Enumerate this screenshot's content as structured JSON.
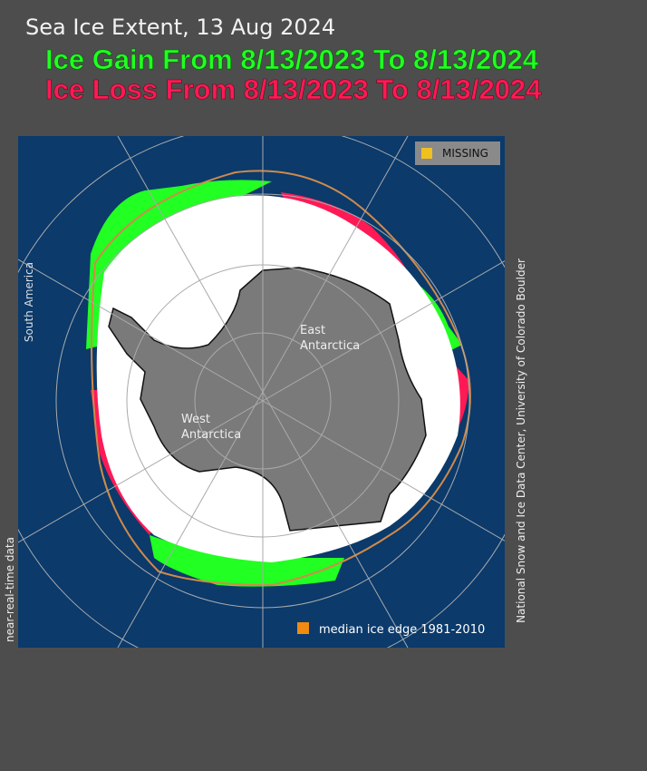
{
  "header": {
    "title": "Sea Ice Extent, 13 Aug 2024",
    "gain": "Ice Gain From 8/13/2023 To 8/13/2024",
    "loss": "Ice Loss From 8/13/2023 To 8/13/2024"
  },
  "map": {
    "labels": {
      "south_america": "South America",
      "east_antarctica": [
        "East",
        "Antarctica"
      ],
      "west_antarctica": [
        "West",
        "Antarctica"
      ]
    },
    "legend": {
      "missing": "MISSING",
      "median": "median ice edge 1981-2010"
    }
  },
  "credits": {
    "left": "near-real-time data",
    "right": "National Snow and Ice Data Center, University of Colorado Boulder"
  }
}
